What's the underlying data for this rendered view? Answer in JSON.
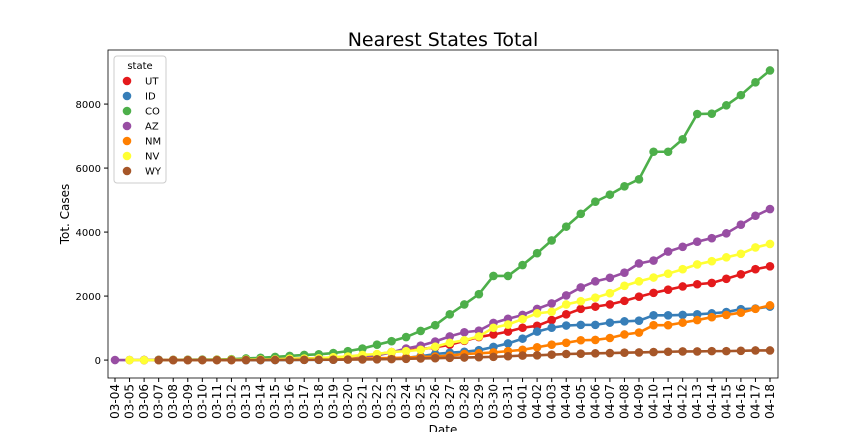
{
  "chart_data": {
    "type": "line",
    "title": "Nearest States Total",
    "xlabel": "Date",
    "ylabel": "Tot. Cases",
    "legend_title": "state",
    "legend": "upper left",
    "categories": [
      "03-04",
      "03-05",
      "03-06",
      "03-07",
      "03-08",
      "03-09",
      "03-10",
      "03-11",
      "03-12",
      "03-13",
      "03-14",
      "03-15",
      "03-16",
      "03-17",
      "03-18",
      "03-19",
      "03-20",
      "03-21",
      "03-22",
      "03-23",
      "03-24",
      "03-25",
      "03-26",
      "03-27",
      "03-28",
      "03-29",
      "03-30",
      "03-31",
      "04-01",
      "04-02",
      "04-03",
      "04-04",
      "04-05",
      "04-06",
      "04-07",
      "04-08",
      "04-09",
      "04-10",
      "04-11",
      "04-12",
      "04-13",
      "04-14",
      "04-15",
      "04-16",
      "04-17",
      "04-18"
    ],
    "ylim": [
      -560,
      9690
    ],
    "yticks": [
      0,
      2000,
      4000,
      6000,
      8000
    ],
    "series": [
      {
        "name": "UT",
        "color": "#e41a1c",
        "values": [
          null,
          null,
          1,
          1,
          1,
          1,
          2,
          3,
          5,
          10,
          20,
          30,
          40,
          50,
          60,
          80,
          110,
          140,
          180,
          250,
          300,
          340,
          400,
          480,
          600,
          720,
          800,
          890,
          1010,
          1070,
          1250,
          1430,
          1600,
          1670,
          1740,
          1850,
          1980,
          2100,
          2200,
          2300,
          2370,
          2410,
          2540,
          2680,
          2840,
          2930
        ]
      },
      {
        "name": "ID",
        "color": "#377eb8",
        "values": [
          null,
          null,
          null,
          null,
          null,
          null,
          null,
          null,
          null,
          1,
          1,
          2,
          5,
          8,
          9,
          11,
          23,
          31,
          40,
          45,
          70,
          120,
          190,
          230,
          260,
          310,
          410,
          520,
          670,
          890,
          1010,
          1080,
          1100,
          1100,
          1170,
          1210,
          1230,
          1400,
          1400,
          1410,
          1430,
          1460,
          1500,
          1590,
          1610,
          1670
        ]
      },
      {
        "name": "CO",
        "color": "#4daf4a",
        "values": [
          null,
          null,
          null,
          8,
          8,
          12,
          15,
          17,
          30,
          50,
          70,
          100,
          130,
          160,
          180,
          220,
          280,
          360,
          480,
          590,
          720,
          910,
          1090,
          1430,
          1740,
          2060,
          2630,
          2630,
          2970,
          3340,
          3740,
          4170,
          4570,
          4950,
          5170,
          5430,
          5650,
          6510,
          6510,
          6900,
          7690,
          7700,
          7960,
          8280,
          8680,
          9050
        ]
      },
      {
        "name": "AZ",
        "color": "#984ea3",
        "values": [
          2,
          2,
          5,
          5,
          5,
          5,
          6,
          6,
          9,
          9,
          10,
          12,
          18,
          20,
          28,
          40,
          60,
          100,
          150,
          240,
          360,
          450,
          580,
          740,
          870,
          920,
          1160,
          1290,
          1410,
          1600,
          1770,
          2020,
          2270,
          2460,
          2570,
          2730,
          3020,
          3110,
          3390,
          3540,
          3700,
          3810,
          3960,
          4230,
          4510,
          4720
        ]
      },
      {
        "name": "NM",
        "color": "#ff7f00",
        "values": [
          null,
          null,
          null,
          null,
          null,
          null,
          null,
          4,
          5,
          10,
          10,
          13,
          13,
          17,
          23,
          28,
          35,
          43,
          57,
          65,
          80,
          100,
          110,
          140,
          190,
          210,
          240,
          280,
          320,
          400,
          480,
          540,
          620,
          630,
          690,
          800,
          860,
          1090,
          1090,
          1170,
          1250,
          1340,
          1410,
          1480,
          1600,
          1710
        ]
      },
      {
        "name": "NV",
        "color": "#ffff33",
        "values": [
          null,
          1,
          1,
          2,
          4,
          4,
          5,
          7,
          11,
          14,
          17,
          21,
          45,
          48,
          56,
          90,
          110,
          160,
          190,
          250,
          280,
          320,
          420,
          540,
          620,
          740,
          1010,
          1110,
          1280,
          1460,
          1510,
          1740,
          1840,
          1950,
          2090,
          2320,
          2460,
          2580,
          2700,
          2840,
          2990,
          3090,
          3210,
          3320,
          3520,
          3630
        ]
      },
      {
        "name": "WY",
        "color": "#a65628",
        "values": [
          null,
          null,
          null,
          0,
          0,
          0,
          0,
          0,
          1,
          1,
          2,
          3,
          5,
          8,
          10,
          12,
          15,
          20,
          25,
          30,
          40,
          50,
          60,
          70,
          80,
          90,
          100,
          120,
          140,
          150,
          170,
          190,
          200,
          210,
          220,
          230,
          240,
          250,
          260,
          270,
          270,
          280,
          280,
          290,
          300,
          300
        ]
      }
    ]
  }
}
